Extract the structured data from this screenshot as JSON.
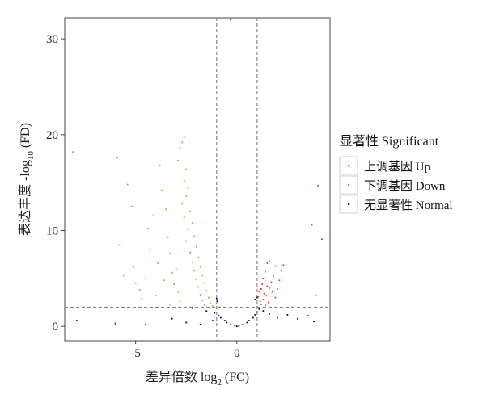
{
  "chart_data": {
    "type": "scatter",
    "title": "",
    "xlabel": {
      "prefix": "差异倍数 log",
      "sub": "2",
      "suffix": " (FC)"
    },
    "ylabel": {
      "prefix": "表达丰度 -log",
      "sub": "10",
      "suffix": " (FD)"
    },
    "xlim": [
      -8.5,
      4.6
    ],
    "ylim": [
      -1.5,
      32.2
    ],
    "x_ticks": [
      -5,
      0
    ],
    "x_tick_labels": [
      "-5",
      "0"
    ],
    "y_ticks": [
      0,
      10,
      20,
      30
    ],
    "y_tick_labels": [
      "0",
      "10",
      "20",
      "30"
    ],
    "grid": false,
    "thresholds": {
      "log2fc": [
        -1,
        1
      ],
      "neg_log10_fdr": 2
    },
    "legend": {
      "title": "显著性 Significant",
      "position": "right",
      "entries": [
        {
          "label": "上调基因 Up",
          "color": "#e8382e"
        },
        {
          "label": "下调基因 Down",
          "color": "#7ac143"
        },
        {
          "label": "无显著性 Normal",
          "color": "#111111"
        }
      ]
    },
    "series": [
      {
        "name": "上调基因 Up",
        "color": "#e8382e",
        "points": [
          [
            4.0,
            14.7
          ],
          [
            4.2,
            9.1
          ],
          [
            3.7,
            10.6
          ],
          [
            3.9,
            3.2
          ],
          [
            2.3,
            6.4
          ],
          [
            2.1,
            4.8
          ],
          [
            1.6,
            6.8
          ],
          [
            1.5,
            6.6
          ],
          [
            1.9,
            6.3
          ],
          [
            2.2,
            5.8
          ],
          [
            1.4,
            5.7
          ],
          [
            1.8,
            5.2
          ],
          [
            1.3,
            5.0
          ],
          [
            1.7,
            4.6
          ],
          [
            1.25,
            4.4
          ],
          [
            1.5,
            4.2
          ],
          [
            1.6,
            4.0
          ],
          [
            1.2,
            3.9
          ],
          [
            1.1,
            3.6
          ],
          [
            1.35,
            3.4
          ],
          [
            1.45,
            3.2
          ],
          [
            1.05,
            3.1
          ],
          [
            1.3,
            2.8
          ],
          [
            1.15,
            2.6
          ],
          [
            1.55,
            2.5
          ],
          [
            1.2,
            2.3
          ],
          [
            1.4,
            2.2
          ],
          [
            2.0,
            3.9
          ],
          [
            1.9,
            3.0
          ],
          [
            1.75,
            3.6
          ]
        ]
      },
      {
        "name": "下调基因 Down",
        "color": "#7ac143",
        "points": [
          [
            -8.1,
            18.2
          ],
          [
            -5.9,
            17.6
          ],
          [
            -5.4,
            14.8
          ],
          [
            -5.2,
            12.5
          ],
          [
            -5.1,
            6.2
          ],
          [
            -5.8,
            8.5
          ],
          [
            -5.6,
            5.3
          ],
          [
            -5.0,
            4.5
          ],
          [
            -4.8,
            3.8
          ],
          [
            -4.7,
            2.9
          ],
          [
            -4.5,
            5.0
          ],
          [
            -4.3,
            8.0
          ],
          [
            -4.4,
            10.2
          ],
          [
            -4.1,
            11.6
          ],
          [
            -3.8,
            16.8
          ],
          [
            -3.7,
            14.2
          ],
          [
            -3.5,
            12.2
          ],
          [
            -3.4,
            9.3
          ],
          [
            -3.3,
            7.6
          ],
          [
            -3.2,
            5.6
          ],
          [
            -2.6,
            19.8
          ],
          [
            -2.7,
            19.2
          ],
          [
            -2.8,
            18.6
          ],
          [
            -2.9,
            17.3
          ],
          [
            -2.5,
            16.4
          ],
          [
            -2.6,
            15.2
          ],
          [
            -2.4,
            14.4
          ],
          [
            -2.5,
            13.6
          ],
          [
            -2.7,
            12.8
          ],
          [
            -2.3,
            12.0
          ],
          [
            -2.6,
            11.4
          ],
          [
            -2.2,
            10.8
          ],
          [
            -2.4,
            10.1
          ],
          [
            -2.1,
            9.4
          ],
          [
            -2.5,
            8.9
          ],
          [
            -2.0,
            8.3
          ],
          [
            -2.3,
            7.7
          ],
          [
            -1.9,
            7.2
          ],
          [
            -2.2,
            6.7
          ],
          [
            -1.8,
            6.2
          ],
          [
            -2.1,
            5.8
          ],
          [
            -1.7,
            5.3
          ],
          [
            -2.0,
            4.9
          ],
          [
            -1.6,
            4.5
          ],
          [
            -1.9,
            4.1
          ],
          [
            -1.5,
            3.7
          ],
          [
            -1.8,
            3.3
          ],
          [
            -1.4,
            3.0
          ],
          [
            -1.7,
            2.7
          ],
          [
            -1.3,
            2.4
          ],
          [
            -1.6,
            2.2
          ],
          [
            -1.2,
            2.1
          ],
          [
            -3.0,
            6.0
          ],
          [
            -3.1,
            4.4
          ],
          [
            -2.9,
            3.6
          ],
          [
            -3.6,
            4.8
          ],
          [
            -3.9,
            6.6
          ],
          [
            -4.0,
            3.2
          ],
          [
            -2.8,
            2.6
          ],
          [
            -3.3,
            2.3
          ]
        ]
      },
      {
        "name": "无显著性 Normal",
        "color": "#111111",
        "points": [
          [
            -0.3,
            32.0
          ],
          [
            -2.2,
            1.9
          ],
          [
            -1.5,
            1.6
          ],
          [
            -1.1,
            1.4
          ],
          [
            -0.9,
            1.1
          ],
          [
            -0.8,
            0.9
          ],
          [
            -0.6,
            0.6
          ],
          [
            -0.5,
            0.4
          ],
          [
            -0.3,
            0.2
          ],
          [
            -0.1,
            0.05
          ],
          [
            0.0,
            0.0
          ],
          [
            0.1,
            0.05
          ],
          [
            0.3,
            0.2
          ],
          [
            0.5,
            0.4
          ],
          [
            0.6,
            0.6
          ],
          [
            0.8,
            0.9
          ],
          [
            0.9,
            1.2
          ],
          [
            1.0,
            1.5
          ],
          [
            1.1,
            1.8
          ],
          [
            1.3,
            1.6
          ],
          [
            1.6,
            1.3
          ],
          [
            2.0,
            0.9
          ],
          [
            2.5,
            1.2
          ],
          [
            3.0,
            0.8
          ],
          [
            3.5,
            1.1
          ],
          [
            3.8,
            0.5
          ],
          [
            -4.5,
            0.2
          ],
          [
            -6.0,
            0.3
          ],
          [
            -3.2,
            0.8
          ],
          [
            -2.5,
            0.4
          ],
          [
            -1.8,
            0.2
          ],
          [
            -1.2,
            0.6
          ],
          [
            0.9,
            2.8
          ],
          [
            1.0,
            3.0
          ],
          [
            -0.95,
            2.6
          ],
          [
            -1.0,
            2.9
          ],
          [
            -7.9,
            0.6
          ]
        ]
      }
    ]
  }
}
